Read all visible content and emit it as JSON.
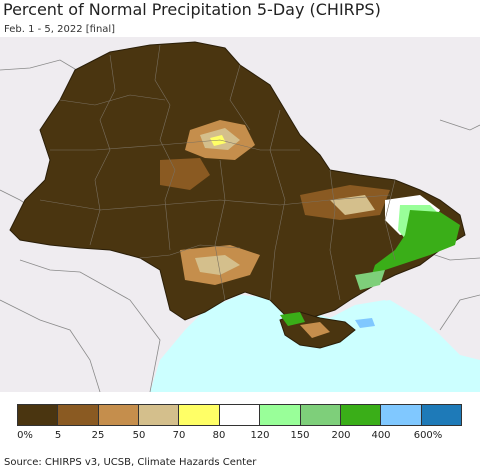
{
  "title": "Percent of Normal Precipitation 5-Day (CHIRPS)",
  "subtitle": "Feb. 1 - 5, 2022 [final]",
  "legend": {
    "colors": [
      "#4a3510",
      "#8a5a22",
      "#c58e4c",
      "#d4bf8c",
      "#ffff66",
      "#ffffff",
      "#99ff99",
      "#7ecf7a",
      "#3aae18",
      "#80c8ff",
      "#1e7ab8"
    ],
    "labels": [
      "0%",
      "5",
      "25",
      "50",
      "70",
      "80",
      "120",
      "150",
      "200",
      "400",
      "600%"
    ]
  },
  "source": "Source: CHIRPS v3, UCSB, Climate Hazards Center",
  "colors": {
    "sea": "#ccffff",
    "land_outside": "#efecf0",
    "very_dry": "#4a3510"
  }
}
